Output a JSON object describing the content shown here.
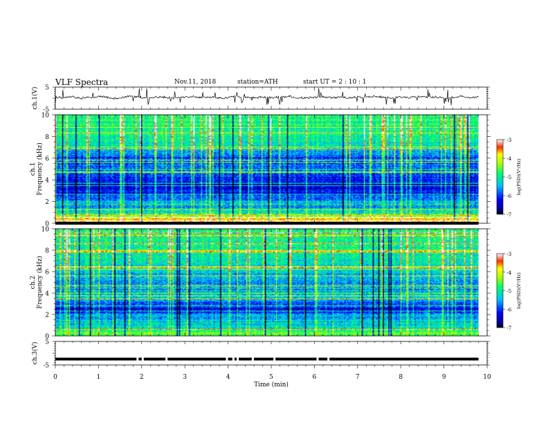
{
  "header": {
    "title": "VLF  Spectra",
    "date": "Nov.11, 2018",
    "station": "station=ATH",
    "start_ut": "start  UT  =   2  : 10 : 1"
  },
  "chart_data": [
    {
      "type": "line",
      "panel": "ch1-waveform",
      "ylabel": "ch.1(V)",
      "ylim": [
        -5,
        5
      ],
      "yticks": [
        "5",
        "-5"
      ],
      "xlim": [
        0,
        10
      ],
      "data_end_min": 9.8,
      "samples": [
        0.5,
        0.2,
        0.6,
        -0.1,
        0.4,
        0.8,
        0.3,
        -0.2,
        0.5,
        0.9,
        0.4,
        0.1,
        0.6,
        0.3,
        -0.1,
        0.4,
        0.7,
        0.2,
        0.5,
        0.0,
        0.3,
        0.8,
        0.4,
        0.1,
        0.6,
        0.2,
        0.5,
        0.9,
        0.3,
        0.0,
        0.4,
        0.7,
        0.2,
        0.5,
        0.1,
        0.6,
        0.3,
        0.8,
        0.4,
        0.0,
        0.5,
        0.2,
        0.7,
        0.3,
        0.6,
        0.1,
        0.4,
        0.9,
        0.2,
        0.5
      ]
    },
    {
      "type": "heatmap",
      "panel": "ch1-spectrogram",
      "ylabel": "ch.1\nFrequency  (kHz)",
      "ylim": [
        0,
        10
      ],
      "yticks": [
        "0",
        "2",
        "4",
        "6",
        "8",
        "10"
      ],
      "xlim": [
        0,
        10
      ],
      "data_end_min": 9.8,
      "colorbar": {
        "label": "log(PSD)(V²/Hz)",
        "range": [
          -7,
          -3
        ],
        "ticks": [
          "-3",
          "-4",
          "-5",
          "-6",
          "-7"
        ]
      },
      "mean_log_psd_by_freq_khz": [
        [
          0.25,
          -3.6
        ],
        [
          0.5,
          -4.2
        ],
        [
          0.75,
          -4.6
        ],
        [
          1.0,
          -5.2
        ],
        [
          1.5,
          -5.6
        ],
        [
          2.0,
          -5.5
        ],
        [
          2.5,
          -6.0
        ],
        [
          3.0,
          -6.3
        ],
        [
          3.5,
          -6.4
        ],
        [
          4.0,
          -6.1
        ],
        [
          4.5,
          -6.0
        ],
        [
          5.0,
          -5.9
        ],
        [
          5.5,
          -5.8
        ],
        [
          6.0,
          -5.9
        ],
        [
          6.5,
          -5.5
        ],
        [
          7.0,
          -5.2
        ],
        [
          8.0,
          -5.0
        ],
        [
          9.0,
          -4.9
        ],
        [
          10.0,
          -4.8
        ]
      ]
    },
    {
      "type": "heatmap",
      "panel": "ch2-spectrogram",
      "ylabel": "ch.2\nFrequency  (kHz)",
      "ylim": [
        0,
        10
      ],
      "yticks": [
        "0",
        "2",
        "4",
        "6",
        "8",
        "10"
      ],
      "xlim": [
        0,
        10
      ],
      "data_end_min": 9.8,
      "colorbar": {
        "label": "log(PSD)(V²/Hz)",
        "range": [
          -7,
          -3
        ],
        "ticks": [
          "-3",
          "-4",
          "-5",
          "-6",
          "-7"
        ]
      },
      "mean_log_psd_by_freq_khz": [
        [
          0.25,
          -4.6
        ],
        [
          0.5,
          -4.9
        ],
        [
          1.0,
          -5.3
        ],
        [
          1.5,
          -5.4
        ],
        [
          2.0,
          -5.6
        ],
        [
          2.5,
          -6.3
        ],
        [
          3.0,
          -5.8
        ],
        [
          3.5,
          -5.5
        ],
        [
          4.0,
          -5.4
        ],
        [
          4.5,
          -5.6
        ],
        [
          5.0,
          -5.5
        ],
        [
          6.0,
          -5.3
        ],
        [
          7.0,
          -5.1
        ],
        [
          8.0,
          -5.0
        ],
        [
          9.0,
          -4.9
        ],
        [
          10.0,
          -4.8
        ]
      ]
    },
    {
      "type": "line",
      "panel": "ch3-waveform",
      "ylabel": "ch.3(V)",
      "ylim": [
        -5,
        5
      ],
      "yticks": [
        "5",
        "-5"
      ],
      "xlim": [
        0,
        10
      ],
      "xlabel": "Time  (min)",
      "xticks": [
        "0",
        "1",
        "2",
        "3",
        "4",
        "5",
        "6",
        "7",
        "8",
        "9",
        "10"
      ],
      "data_end_min": 9.8,
      "level_volts": -2.5
    }
  ]
}
